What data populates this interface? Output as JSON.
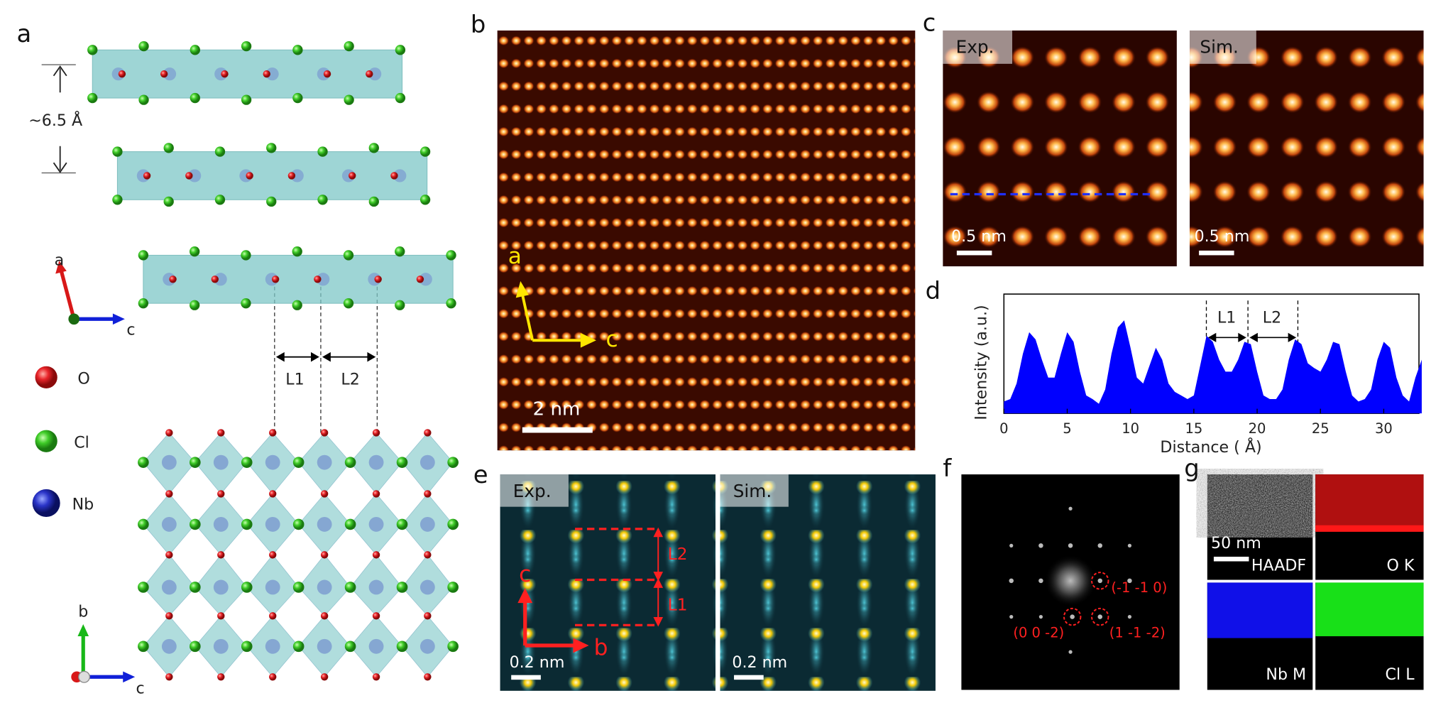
{
  "panel_labels": [
    "a",
    "b",
    "c",
    "d",
    "e",
    "f",
    "g"
  ],
  "panel_a": {
    "spacing": "~6.5 Å",
    "axes_top": [
      "a",
      "c"
    ],
    "legend": [
      "O",
      "Cl",
      "Nb"
    ],
    "distances": [
      "L1",
      "L2"
    ],
    "axes_bottom": [
      "b",
      "c"
    ]
  },
  "panel_b": {
    "axes": [
      "a",
      "c"
    ],
    "scale_bar": "2 nm"
  },
  "panel_c": {
    "images": [
      "Exp.",
      "Sim."
    ],
    "scale_bars": [
      "0.5 nm",
      "0.5 nm"
    ]
  },
  "panel_d": {
    "type": "area",
    "ylabel": "Intensity (a.u.)",
    "xlabel": "Distance ( Å)",
    "xlim": [
      0,
      33
    ],
    "ylim": [
      0,
      1
    ],
    "xticks": [
      0,
      5,
      10,
      15,
      20,
      25,
      30
    ],
    "color": "#0000ff",
    "distances": [
      "L1",
      "L2"
    ],
    "x": [
      0,
      0.5,
      1,
      1.5,
      2,
      2.5,
      3,
      3.5,
      4,
      4.5,
      5,
      5.5,
      6,
      6.5,
      7,
      7.5,
      8,
      8.5,
      9,
      9.5,
      10,
      10.5,
      11,
      11.5,
      12,
      12.5,
      13,
      13.5,
      14,
      14.5,
      15,
      15.5,
      16,
      16.5,
      17,
      17.5,
      18,
      18.5,
      19,
      19.5,
      20,
      20.5,
      21,
      21.5,
      22,
      22.5,
      23,
      23.5,
      24,
      24.5,
      25,
      25.5,
      26,
      26.5,
      27,
      27.5,
      28,
      28.5,
      29,
      29.5,
      30,
      30.5,
      31,
      31.5,
      32,
      32.5,
      33
    ],
    "values": [
      0.1,
      0.12,
      0.25,
      0.5,
      0.68,
      0.62,
      0.45,
      0.3,
      0.3,
      0.5,
      0.68,
      0.6,
      0.35,
      0.15,
      0.12,
      0.08,
      0.2,
      0.5,
      0.72,
      0.78,
      0.55,
      0.3,
      0.25,
      0.4,
      0.55,
      0.45,
      0.25,
      0.18,
      0.15,
      0.12,
      0.15,
      0.4,
      0.65,
      0.6,
      0.45,
      0.35,
      0.35,
      0.45,
      0.6,
      0.58,
      0.35,
      0.15,
      0.12,
      0.12,
      0.2,
      0.45,
      0.62,
      0.58,
      0.42,
      0.38,
      0.35,
      0.45,
      0.6,
      0.58,
      0.35,
      0.15,
      0.1,
      0.12,
      0.2,
      0.45,
      0.6,
      0.55,
      0.3,
      0.15,
      0.1,
      0.3,
      0.45
    ]
  },
  "panel_e": {
    "images": [
      "Exp.",
      "Sim."
    ],
    "axes": [
      "c",
      "b"
    ],
    "distances": [
      "L2",
      "L1"
    ],
    "scale_bars": [
      "0.2 nm",
      "0.2 nm"
    ]
  },
  "panel_f": {
    "spots": [
      "(-1 -1 0)",
      "(0 0 -2)",
      "(1 -1 -2)"
    ]
  },
  "panel_g": {
    "scale_bar": "50 nm",
    "maps": [
      "HAADF",
      "O K",
      "Nb M",
      "Cl L"
    ]
  }
}
